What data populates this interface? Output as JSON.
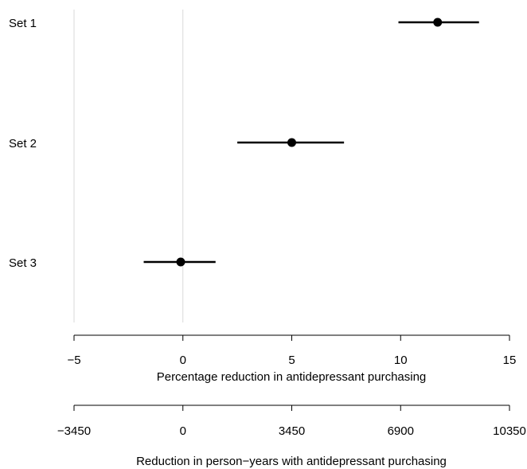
{
  "chart_data": {
    "type": "forest",
    "series": [
      {
        "label": "Set 1",
        "estimate": 11.7,
        "lower": 9.9,
        "upper": 13.6
      },
      {
        "label": "Set 2",
        "estimate": 5.0,
        "lower": 2.5,
        "upper": 7.4
      },
      {
        "label": "Set 3",
        "estimate": -0.1,
        "lower": -1.8,
        "upper": 1.5
      }
    ],
    "xaxis_primary": {
      "label": "Percentage reduction in antidepressant purchasing",
      "ticks": [
        -5,
        0,
        5,
        10,
        15
      ],
      "range": [
        -5,
        15
      ]
    },
    "xaxis_secondary": {
      "label": "Reduction in person−years with antidepressant purchasing",
      "ticks": [
        "−3450",
        "0",
        "3450",
        "6900",
        "10350"
      ]
    },
    "reference_lines": [
      -5,
      0
    ],
    "colors": {
      "point": "#000000",
      "line": "#000000",
      "reference": "#d9d9d9"
    }
  }
}
